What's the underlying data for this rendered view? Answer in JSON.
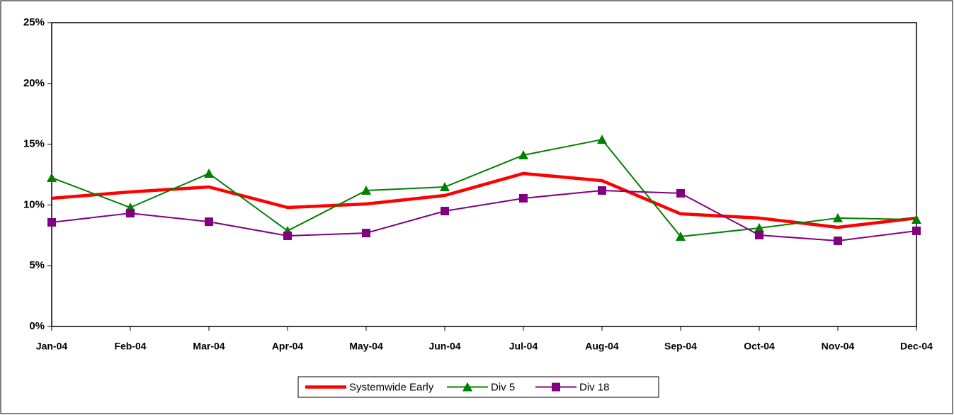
{
  "chart_data": {
    "type": "line",
    "categories": [
      "Jan-04",
      "Feb-04",
      "Mar-04",
      "Apr-04",
      "May-04",
      "Jun-04",
      "Jul-04",
      "Aug-04",
      "Sep-04",
      "Oct-04",
      "Nov-04",
      "Dec-04"
    ],
    "series": [
      {
        "name": "Systemwide Early",
        "color": "#ff0000",
        "marker": "none",
        "values": [
          10.55,
          11.07,
          11.48,
          9.79,
          10.08,
          10.78,
          12.59,
          12.0,
          9.27,
          8.92,
          8.16,
          8.92
        ]
      },
      {
        "name": "Div 5",
        "color": "#008000",
        "marker": "triangle",
        "values": [
          12.24,
          9.79,
          12.59,
          7.87,
          11.19,
          11.48,
          14.1,
          15.38,
          7.4,
          8.1,
          8.92,
          8.8
        ]
      },
      {
        "name": "Div 18",
        "color": "#800080",
        "marker": "square",
        "values": [
          8.57,
          9.32,
          8.62,
          7.46,
          7.69,
          9.5,
          10.55,
          11.19,
          10.96,
          7.52,
          7.05,
          7.87
        ]
      }
    ],
    "ylim": [
      0,
      25
    ],
    "yticks": [
      {
        "value": 0,
        "label": "0%"
      },
      {
        "value": 5,
        "label": "5%"
      },
      {
        "value": 10,
        "label": "10%"
      },
      {
        "value": 15,
        "label": "15%"
      },
      {
        "value": 20,
        "label": "20%"
      },
      {
        "value": 25,
        "label": "25%"
      }
    ],
    "grid": false,
    "legend": "bottom"
  }
}
